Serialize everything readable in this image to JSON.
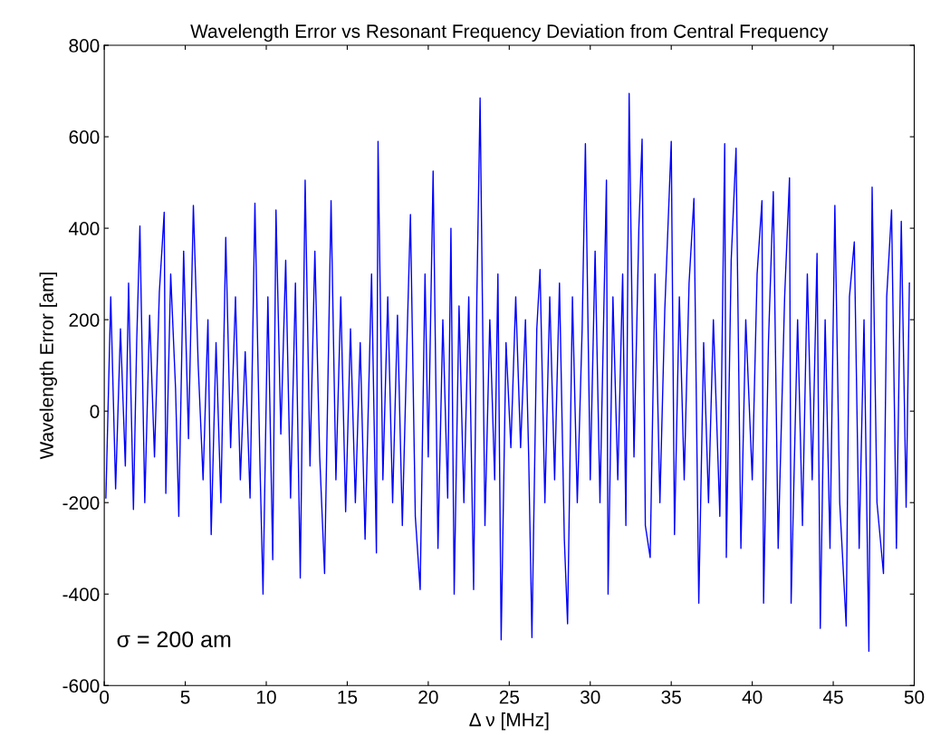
{
  "chart_data": {
    "type": "line",
    "title": "Wavelength Error vs Resonant Frequency Deviation from Central Frequency",
    "xlabel": "Δ ν [MHz]",
    "ylabel": "Wavelength Error [am]",
    "annotations": [
      "σ = 200 am"
    ],
    "series": [
      {
        "color": "#0000ff",
        "x": [
          0.1,
          0.4,
          0.7,
          1.0,
          1.3,
          1.5,
          1.8,
          2.0,
          2.2,
          2.5,
          2.8,
          3.1,
          3.4,
          3.7,
          3.8,
          4.1,
          4.4,
          4.6,
          4.9,
          5.2,
          5.5,
          5.8,
          6.1,
          6.4,
          6.6,
          6.9,
          7.2,
          7.5,
          7.8,
          8.1,
          8.4,
          8.7,
          9.0,
          9.3,
          9.6,
          9.8,
          10.1,
          10.4,
          10.6,
          10.9,
          11.2,
          11.5,
          11.8,
          12.1,
          12.4,
          12.7,
          13.0,
          13.3,
          13.6,
          14.0,
          14.3,
          14.6,
          14.9,
          15.2,
          15.5,
          15.8,
          16.1,
          16.5,
          16.8,
          16.9,
          17.2,
          17.5,
          17.8,
          18.1,
          18.4,
          18.7,
          18.9,
          19.2,
          19.5,
          19.8,
          20.0,
          20.3,
          20.6,
          20.9,
          21.2,
          21.4,
          21.6,
          21.9,
          22.2,
          22.5,
          22.8,
          23.0,
          23.2,
          23.5,
          23.8,
          24.1,
          24.3,
          24.5,
          24.8,
          25.1,
          25.4,
          25.7,
          26.0,
          26.2,
          26.4,
          26.7,
          26.9,
          27.2,
          27.5,
          27.8,
          28.1,
          28.4,
          28.6,
          28.9,
          29.2,
          29.5,
          29.7,
          30.0,
          30.3,
          30.6,
          31.0,
          31.1,
          31.4,
          31.7,
          32.0,
          32.2,
          32.4,
          32.7,
          33.0,
          33.2,
          33.4,
          33.7,
          34.0,
          34.3,
          34.6,
          35.0,
          35.2,
          35.5,
          35.8,
          36.1,
          36.4,
          36.7,
          37.0,
          37.3,
          37.6,
          38.0,
          38.3,
          38.4,
          38.7,
          39.0,
          39.3,
          39.6,
          40.0,
          40.3,
          40.6,
          40.7,
          41.0,
          41.3,
          41.6,
          42.0,
          42.3,
          42.4,
          42.8,
          43.1,
          43.4,
          43.7,
          44.0,
          44.2,
          44.5,
          44.8,
          45.1,
          45.4,
          45.8,
          46.0,
          46.3,
          46.6,
          46.9,
          47.2,
          47.4,
          47.7,
          48.1,
          48.3,
          48.6,
          48.9,
          49.2,
          49.5,
          49.7
        ],
        "values": [
          -190,
          250,
          -170,
          180,
          -120,
          280,
          -215,
          150,
          405,
          -200,
          210,
          -100,
          260,
          435,
          -180,
          300,
          50,
          -230,
          350,
          -60,
          450,
          100,
          -150,
          200,
          -270,
          150,
          -200,
          380,
          -80,
          250,
          -150,
          130,
          -190,
          455,
          -100,
          -400,
          250,
          -325,
          440,
          -50,
          330,
          -190,
          280,
          -365,
          505,
          -120,
          350,
          -100,
          -355,
          460,
          -150,
          250,
          -220,
          180,
          -200,
          150,
          -280,
          300,
          -310,
          590,
          -150,
          250,
          -200,
          210,
          -250,
          170,
          430,
          -230,
          -390,
          300,
          -100,
          525,
          -300,
          200,
          -190,
          400,
          -400,
          230,
          -200,
          250,
          -390,
          250,
          685,
          -250,
          200,
          -150,
          300,
          -500,
          150,
          -80,
          250,
          -80,
          200,
          -100,
          -495,
          180,
          310,
          -200,
          250,
          -150,
          280,
          -280,
          -465,
          250,
          -200,
          180,
          585,
          -150,
          350,
          -200,
          505,
          -400,
          250,
          -150,
          300,
          -250,
          695,
          -100,
          400,
          595,
          -250,
          -320,
          300,
          -200,
          220,
          590,
          -270,
          250,
          -150,
          280,
          465,
          -420,
          150,
          -200,
          200,
          -230,
          585,
          -320,
          330,
          575,
          -300,
          200,
          -150,
          300,
          460,
          -420,
          150,
          480,
          -300,
          250,
          510,
          -420,
          200,
          -250,
          300,
          -150,
          345,
          -475,
          200,
          -300,
          450,
          -200,
          -470,
          250,
          370,
          -300,
          200,
          -525,
          490,
          -200,
          -355,
          250,
          440,
          -300,
          415,
          -210,
          280
        ]
      }
    ],
    "xlim": [
      0,
      50
    ],
    "ylim": [
      -600,
      800
    ],
    "xticks": [
      0,
      5,
      10,
      15,
      20,
      25,
      30,
      35,
      40,
      45,
      50
    ],
    "yticks": [
      -600,
      -400,
      -200,
      0,
      200,
      400,
      600,
      800
    ],
    "grid": false,
    "marker": "none",
    "line_style": "solid"
  }
}
